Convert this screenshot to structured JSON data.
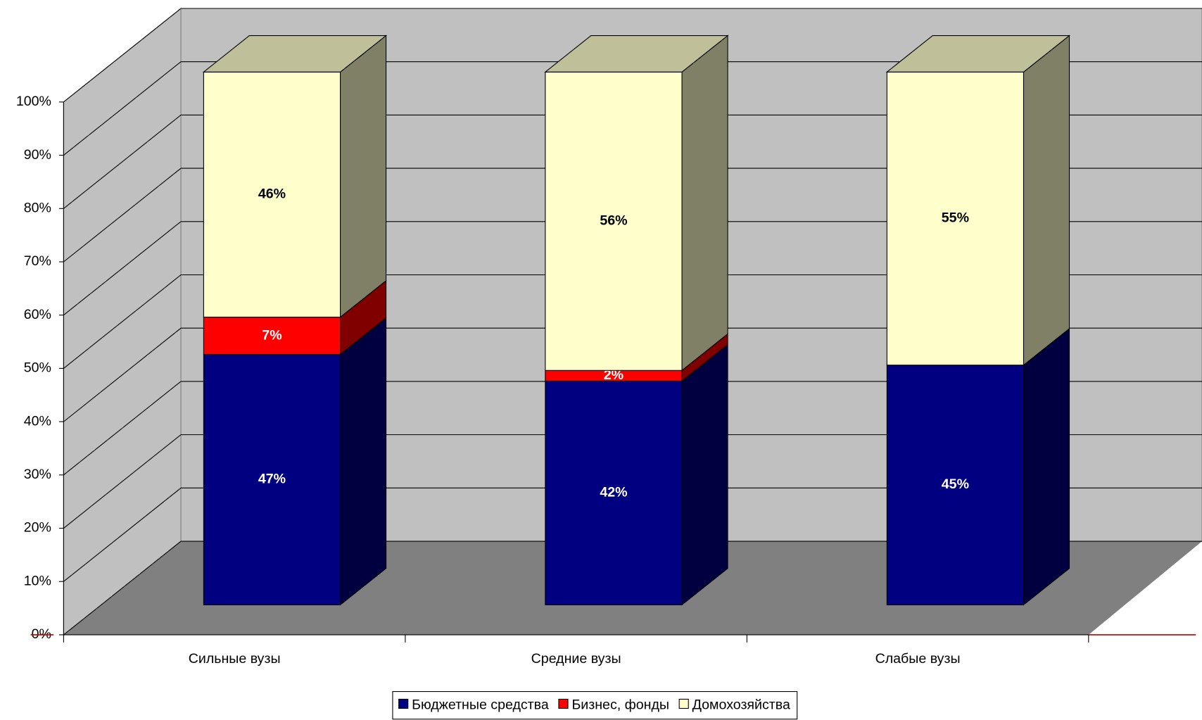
{
  "chart_data": {
    "type": "bar3d_stacked",
    "categories": [
      "Сильные вузы",
      "Средние вузы",
      "Слабые вузы"
    ],
    "series": [
      {
        "name": "Бюджетные средства",
        "color": "#000080",
        "values": [
          47,
          42,
          45
        ],
        "value_labels": [
          "47%",
          "42%",
          "45%"
        ]
      },
      {
        "name": "Бизнес, фонды",
        "color": "#ff0000",
        "values": [
          7,
          2,
          null
        ],
        "value_labels": [
          "7%",
          "2%",
          null
        ]
      },
      {
        "name": "Домохозяйства",
        "color": "#ffffcc",
        "values": [
          46,
          56,
          55
        ],
        "value_labels": [
          "46%",
          "56%",
          "55%"
        ]
      }
    ],
    "ylim": [
      0,
      100
    ],
    "yticks": [
      {
        "value": 0,
        "label": "0%"
      },
      {
        "value": 10,
        "label": "10%"
      },
      {
        "value": 20,
        "label": "20%"
      },
      {
        "value": 30,
        "label": "30%"
      },
      {
        "value": 40,
        "label": "40%"
      },
      {
        "value": 50,
        "label": "50%"
      },
      {
        "value": 60,
        "label": "60%"
      },
      {
        "value": 70,
        "label": "70%"
      },
      {
        "value": 80,
        "label": "80%"
      },
      {
        "value": 90,
        "label": "90%"
      },
      {
        "value": 100,
        "label": "100%"
      }
    ],
    "grid": true,
    "legend": "bottom"
  }
}
